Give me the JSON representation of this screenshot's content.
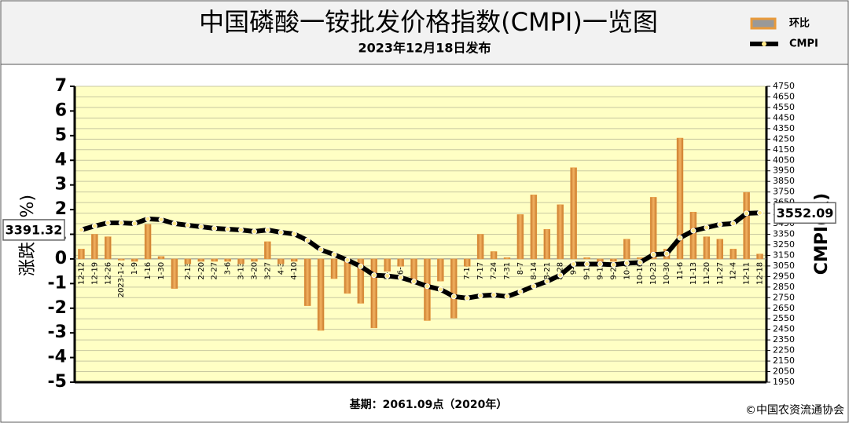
{
  "chart_data": {
    "type": "bar",
    "title": "中国磷酸一铵批发价格指数(CMPI)一览图",
    "subtitle": "2023年12月18日发布",
    "footer": "基期：2061.09点（2020年）",
    "credit": "©中国农资流通协会",
    "y_label": "涨跌幅(%)",
    "y2_label": "CMPI(点)",
    "categories": [
      "12-12",
      "12-19",
      "12-26",
      "2023-1-2",
      "1-9",
      "1-16",
      "1-30",
      "2-6",
      "2-13",
      "2-20",
      "2-27",
      "3-6",
      "3-13",
      "3-20",
      "3-27",
      "4-3",
      "4-10",
      "4-17",
      "4-24",
      "5-1",
      "5-8",
      "5-15",
      "5-22",
      "5-29",
      "6-5",
      "6-12",
      "6-19",
      "6-26",
      "7-3",
      "7-10",
      "7-17",
      "7-24",
      "7-31",
      "8-7",
      "8-14",
      "8-21",
      "8-28",
      "9-4",
      "9-11",
      "9-18",
      "9-25",
      "10-9",
      "10-16",
      "10-23",
      "10-30",
      "11-6",
      "11-13",
      "11-20",
      "11-27",
      "12-4",
      "12-11",
      "12-18"
    ],
    "series": [
      {
        "name": "环比",
        "type": "bar",
        "color": "#e89a3c",
        "values": [
          0.4,
          1.0,
          0.9,
          -0.05,
          -0.1,
          1.4,
          0.1,
          -1.2,
          -0.2,
          -0.1,
          -0.1,
          -0.1,
          -0.2,
          -0.1,
          0.7,
          -0.2,
          -0.1,
          -1.9,
          -2.9,
          -0.8,
          -1.4,
          -1.8,
          -2.8,
          -0.5,
          -0.3,
          -1.0,
          -2.5,
          -0.9,
          -2.4,
          -0.3,
          1.0,
          0.3,
          0.05,
          1.8,
          2.6,
          1.2,
          2.2,
          3.7,
          0.05,
          -0.1,
          -0.1,
          0.8,
          0.05,
          2.5,
          0.4,
          4.9,
          1.9,
          0.9,
          0.8,
          0.4,
          2.7,
          0.2
        ]
      },
      {
        "name": "CMPI",
        "type": "line",
        "axis": "y2",
        "color": "#000000",
        "values": [
          3391.32,
          3428,
          3458,
          3458,
          3451,
          3496,
          3488,
          3451,
          3436,
          3421,
          3406,
          3398,
          3391,
          3376,
          3391,
          3368,
          3353,
          3293,
          3203,
          3158,
          3106,
          3046,
          2963,
          2956,
          2941,
          2903,
          2858,
          2828,
          2761,
          2746,
          2768,
          2776,
          2761,
          2806,
          2858,
          2903,
          2963,
          3068,
          3068,
          3068,
          3061,
          3076,
          3083,
          3158,
          3166,
          3316,
          3383,
          3413,
          3443,
          3451,
          3548,
          3552.09
        ],
        "value_labels": [
          "3391.32",
          null,
          null,
          null,
          null,
          null,
          null,
          null,
          null,
          null,
          null,
          null,
          null,
          null,
          null,
          null,
          null,
          null,
          null,
          null,
          null,
          null,
          null,
          null,
          null,
          null,
          null,
          null,
          null,
          null,
          null,
          null,
          null,
          null,
          null,
          null,
          null,
          null,
          null,
          null,
          null,
          null,
          null,
          null,
          null,
          null,
          null,
          null,
          null,
          null,
          null,
          "3552.09"
        ]
      }
    ],
    "ylim": [
      -5,
      7
    ],
    "yticks": [
      -5,
      -4,
      -3,
      -2,
      -1,
      0,
      1,
      2,
      3,
      4,
      5,
      6,
      7
    ],
    "y2lim": [
      1950,
      4750
    ],
    "y2ticks": [
      1950,
      2050,
      2150,
      2250,
      2350,
      2450,
      2550,
      2650,
      2750,
      2850,
      2950,
      3050,
      3150,
      3250,
      3350,
      3450,
      3550,
      3650,
      3750,
      3850,
      3950,
      4050,
      4150,
      4250,
      4350,
      4450,
      4550,
      4650,
      4750
    ],
    "grid": true
  }
}
